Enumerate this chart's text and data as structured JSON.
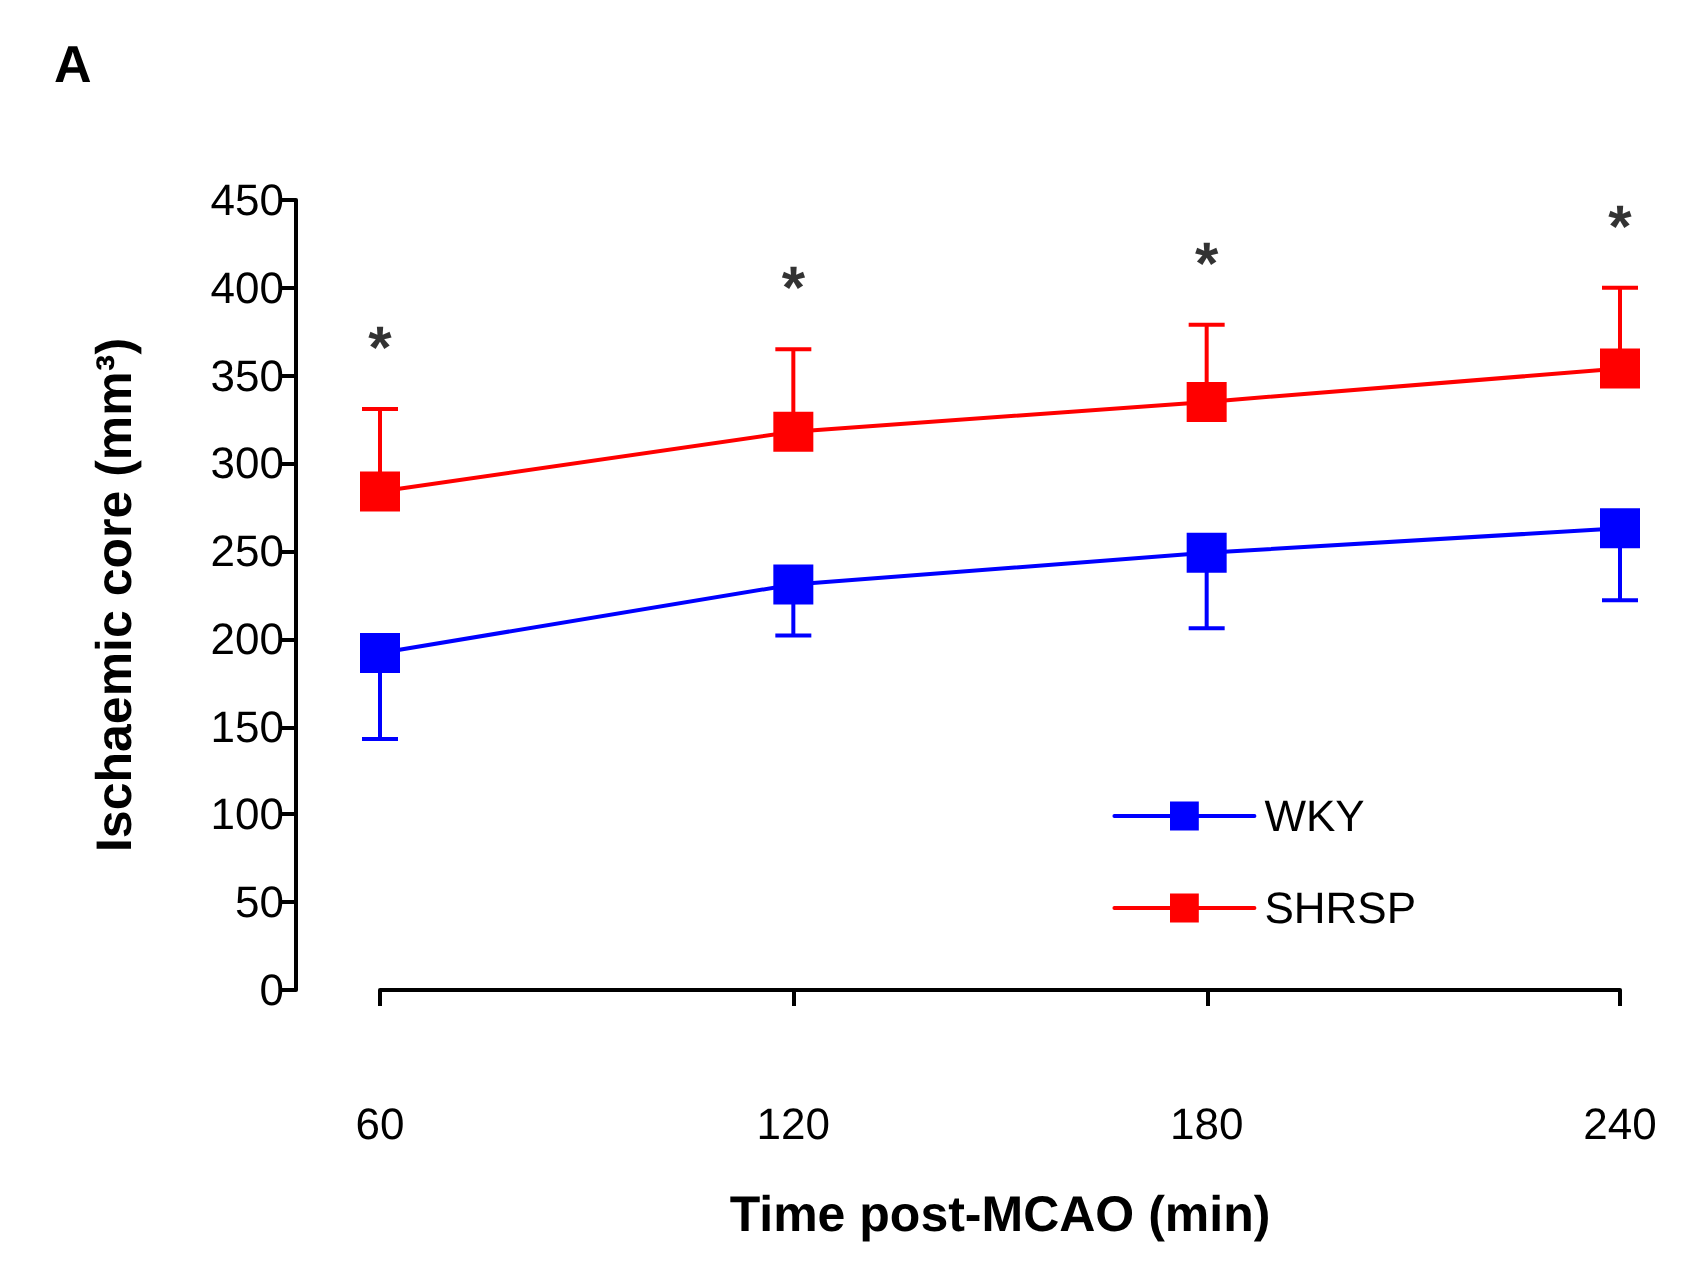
{
  "chart_data": {
    "type": "line",
    "title": "A",
    "xlabel": "Time post-MCAO (min)",
    "ylabel": "Ischaemic core (mm³)",
    "x": [
      60,
      120,
      180,
      240
    ],
    "series": [
      {
        "name": "WKY",
        "color": "#0000ff",
        "values": [
          192,
          231,
          249,
          263
        ],
        "errors": [
          [
            143,
            192
          ],
          [
            202,
            231
          ],
          [
            206,
            249
          ],
          [
            222,
            263
          ]
        ]
      },
      {
        "name": "SHRSP",
        "color": "#ff0000",
        "values": [
          284,
          318,
          335,
          354
        ],
        "errors": [
          [
            284,
            331
          ],
          [
            318,
            365
          ],
          [
            335,
            379
          ],
          [
            354,
            400
          ]
        ]
      }
    ],
    "xlim": [
      60,
      240
    ],
    "xticks": [
      60,
      120,
      180,
      240
    ],
    "ylim": [
      0,
      450
    ],
    "yticks": [
      0,
      50,
      100,
      150,
      200,
      250,
      300,
      350,
      400,
      450
    ],
    "annotations": [
      "*",
      "*",
      "*",
      "*"
    ],
    "legend": "bottom right",
    "marker": "square",
    "line_style": "solid",
    "grid": false
  }
}
